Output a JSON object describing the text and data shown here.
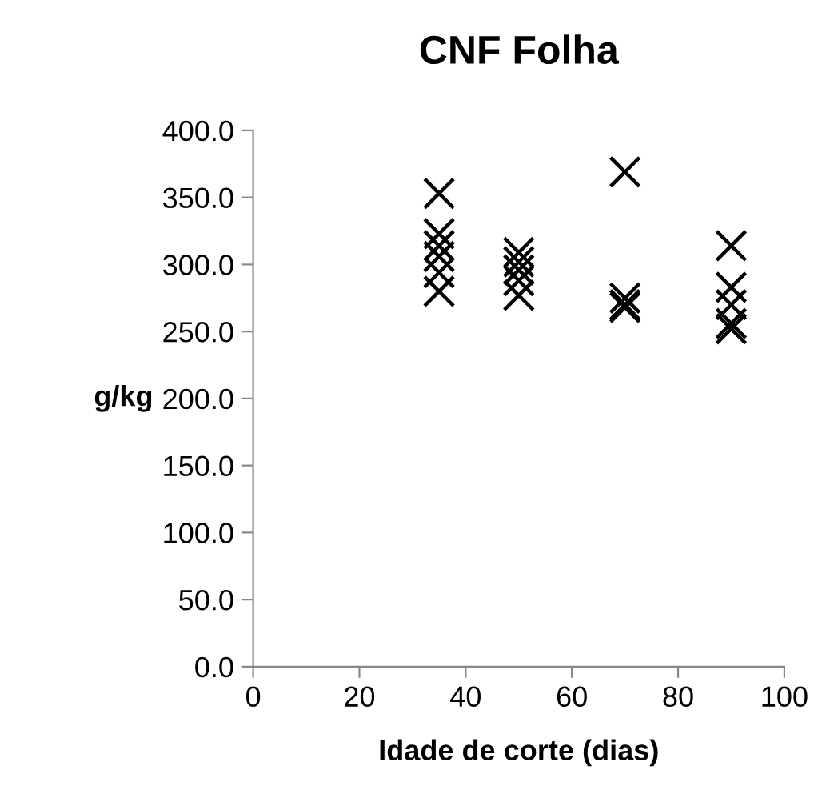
{
  "chart_data": {
    "type": "scatter",
    "title": "CNF Folha",
    "xlabel": "Idade de corte (dias)",
    "ylabel": "g/kg",
    "series": [
      {
        "color": "#000000",
        "x": [
          35,
          35,
          35,
          35,
          35,
          35,
          50,
          50,
          50,
          50,
          50,
          70,
          70,
          70,
          70,
          90,
          90,
          90,
          90,
          90
        ],
        "values": [
          353,
          323,
          314,
          306,
          294,
          280,
          309,
          302,
          296,
          288,
          277,
          369,
          275,
          270,
          268,
          314,
          283,
          270,
          256,
          252
        ]
      }
    ],
    "marker": "cross",
    "xlim": [
      0,
      100
    ],
    "xticks": [
      0,
      20,
      40,
      60,
      80,
      100
    ],
    "ylim": [
      0,
      400
    ],
    "yticks": [
      {
        "value": 0,
        "label": "0.0"
      },
      {
        "value": 50,
        "label": "50.0"
      },
      {
        "value": 100,
        "label": "100.0"
      },
      {
        "value": 150,
        "label": "150.0"
      },
      {
        "value": 200,
        "label": "200.0"
      },
      {
        "value": 250,
        "label": "250.0"
      },
      {
        "value": 300,
        "label": "300.0"
      },
      {
        "value": 350,
        "label": "350.0"
      },
      {
        "value": 400,
        "label": "400.0"
      }
    ],
    "grid": false,
    "legend": false
  }
}
